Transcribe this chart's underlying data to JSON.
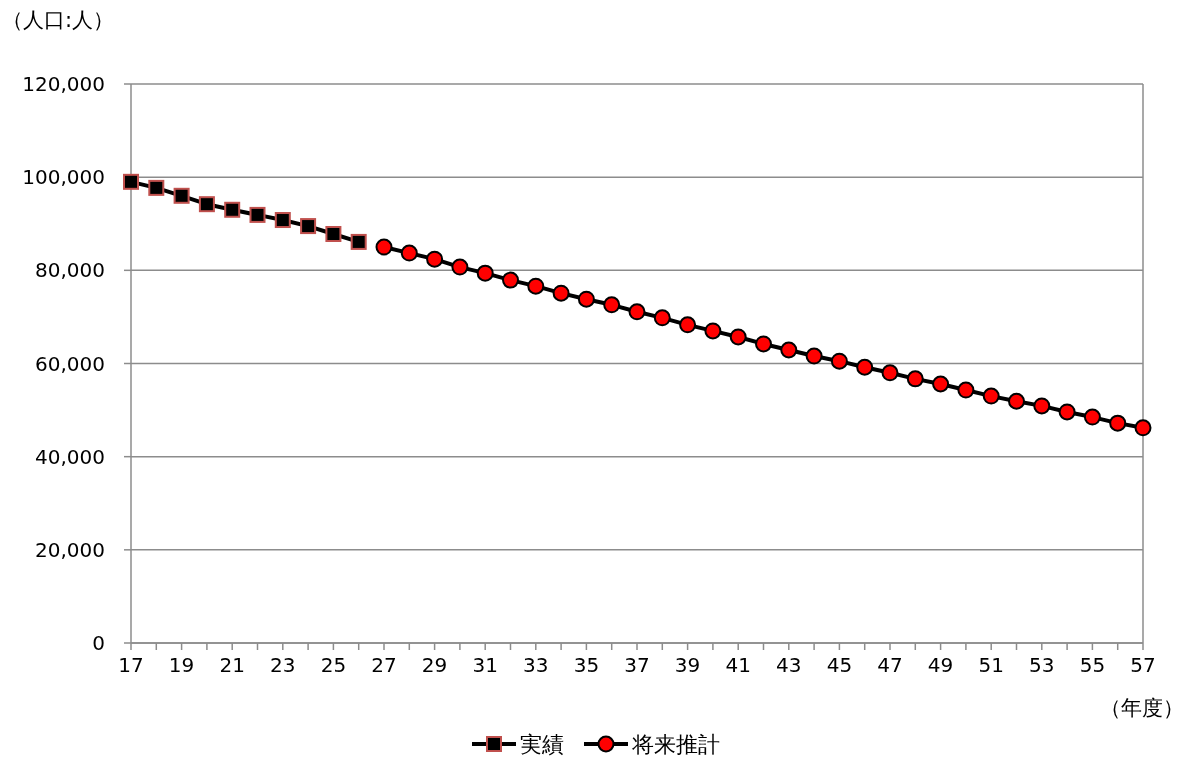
{
  "chart_data": {
    "type": "line",
    "ylabel": "（人口:人）",
    "xlabel": "（年度）",
    "xlim": [
      17,
      57
    ],
    "xticks": [
      17,
      {
        "value": 18,
        "label": null
      },
      19,
      {
        "value": 20,
        "label": null
      },
      21,
      {
        "value": 22,
        "label": null
      },
      23,
      {
        "value": 24,
        "label": null
      },
      25,
      {
        "value": 26,
        "label": null
      },
      27,
      {
        "value": 28,
        "label": null
      },
      29,
      {
        "value": 30,
        "label": null
      },
      31,
      {
        "value": 32,
        "label": null
      },
      33,
      {
        "value": 34,
        "label": null
      },
      35,
      {
        "value": 36,
        "label": null
      },
      37,
      {
        "value": 38,
        "label": null
      },
      39,
      {
        "value": 40,
        "label": null
      },
      41,
      {
        "value": 42,
        "label": null
      },
      43,
      {
        "value": 44,
        "label": null
      },
      45,
      {
        "value": 46,
        "label": null
      },
      47,
      {
        "value": 48,
        "label": null
      },
      49,
      {
        "value": 50,
        "label": null
      },
      51,
      {
        "value": 52,
        "label": null
      },
      53,
      {
        "value": 54,
        "label": null
      },
      55,
      {
        "value": 56,
        "label": null
      },
      57
    ],
    "ylim": [
      0,
      120000
    ],
    "yticks": [
      {
        "value": 0,
        "label": "0"
      },
      {
        "value": 20000,
        "label": "20,000"
      },
      {
        "value": 40000,
        "label": "40,000"
      },
      {
        "value": 60000,
        "label": "60,000"
      },
      {
        "value": 80000,
        "label": "80,000"
      },
      {
        "value": 100000,
        "label": "100,000"
      },
      {
        "value": 120000,
        "label": "120,000"
      }
    ],
    "grid": "y",
    "legend": "bottom",
    "line_style": "solid",
    "series": [
      {
        "name": "実績",
        "color": "#000000",
        "marker": "square",
        "x": [
          17,
          18,
          19,
          20,
          21,
          22,
          23,
          24,
          25,
          26
        ],
        "values": [
          99000,
          97700,
          96000,
          94200,
          93000,
          91900,
          90800,
          89500,
          87800,
          86100
        ]
      },
      {
        "name": "将来推計",
        "color": "#ff0000",
        "marker": "circle",
        "x": [
          27,
          28,
          29,
          30,
          31,
          32,
          33,
          34,
          35,
          36,
          37,
          38,
          39,
          40,
          41,
          42,
          43,
          44,
          45,
          46,
          47,
          48,
          49,
          50,
          51,
          52,
          53,
          54,
          55,
          56,
          57
        ],
        "values": [
          85000,
          83700,
          82400,
          80700,
          79400,
          77900,
          76600,
          75100,
          73800,
          72600,
          71100,
          69800,
          68300,
          67000,
          65700,
          64200,
          62900,
          61600,
          60500,
          59200,
          58000,
          56700,
          55600,
          54300,
          53000,
          51900,
          50900,
          49600,
          48500,
          47200,
          46200
        ]
      }
    ]
  }
}
